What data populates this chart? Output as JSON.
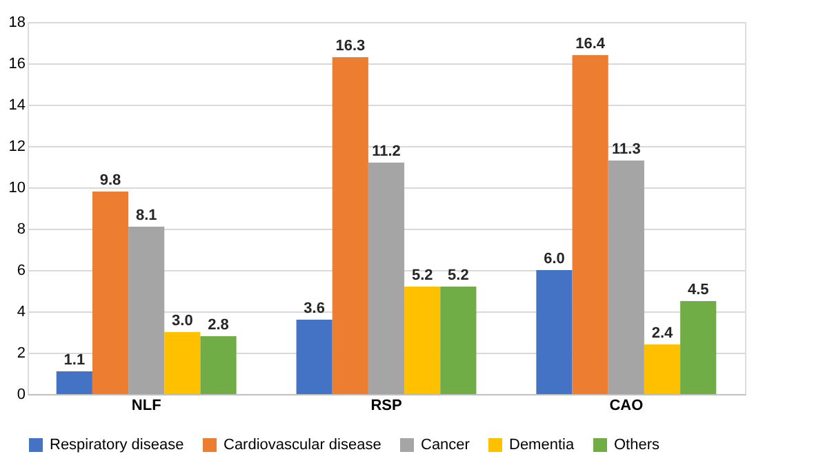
{
  "chart_data": {
    "type": "bar",
    "categories": [
      "NLF",
      "RSP",
      "CAO"
    ],
    "series": [
      {
        "name": "Respiratory disease",
        "color": "#4472c4",
        "values": [
          1.1,
          3.6,
          6.0
        ],
        "value_labels": [
          "1.1",
          "3.6",
          "6.0"
        ]
      },
      {
        "name": "Cardiovascular disease",
        "color": "#ed7d31",
        "values": [
          9.8,
          16.3,
          16.4
        ],
        "value_labels": [
          "9.8",
          "16.3",
          "16.4"
        ]
      },
      {
        "name": "Cancer",
        "color": "#a5a5a5",
        "values": [
          8.1,
          11.2,
          11.3
        ],
        "value_labels": [
          "8.1",
          "11.2",
          "11.3"
        ]
      },
      {
        "name": "Dementia",
        "color": "#ffc000",
        "values": [
          3.0,
          5.2,
          2.4
        ],
        "value_labels": [
          "3.0",
          "5.2",
          "2.4"
        ]
      },
      {
        "name": "Others",
        "color": "#70ad47",
        "values": [
          2.8,
          5.2,
          4.5
        ],
        "value_labels": [
          "2.8",
          "5.2",
          "4.5"
        ]
      }
    ],
    "ylim": [
      0,
      18
    ],
    "yticks": [
      0,
      2,
      4,
      6,
      8,
      10,
      12,
      14,
      16,
      18
    ],
    "grid": "y",
    "legend": "bottom"
  }
}
